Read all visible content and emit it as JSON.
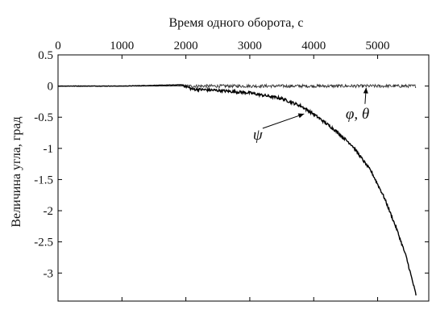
{
  "chart_data": {
    "type": "line",
    "xlabel": "Время одного оборота, с",
    "ylabel": "Величина угла, град",
    "x_axis_position": "top",
    "xlim": [
      0,
      5800
    ],
    "ylim": [
      -3.45,
      0.5
    ],
    "grid": false,
    "x_ticks": [
      0,
      1000,
      2000,
      3000,
      4000,
      5000
    ],
    "x_tick_labels": [
      "0",
      "1000",
      "2000",
      "3000",
      "4000",
      "5000"
    ],
    "y_ticks": [
      0.5,
      0,
      -0.5,
      -1,
      -1.5,
      -2,
      -2.5,
      -3
    ],
    "y_tick_labels": [
      "0.5",
      "0",
      "-0.5",
      "-1",
      "-1.5",
      "-2",
      "-2.5",
      "-3"
    ],
    "series": [
      {
        "name": "φ, θ",
        "x": [
          0,
          500,
          1000,
          1500,
          2000,
          2500,
          3000,
          3500,
          4000,
          4500,
          5000,
          5600
        ],
        "y": [
          0,
          0,
          0,
          0,
          0,
          0,
          0,
          0,
          0,
          0,
          0,
          0
        ]
      },
      {
        "name": "ψ",
        "x": [
          0,
          500,
          1000,
          1500,
          1950,
          2100,
          2500,
          3000,
          3500,
          3800,
          4000,
          4300,
          4600,
          4900,
          5100,
          5300,
          5450,
          5600
        ],
        "y": [
          0,
          0,
          0,
          0.01,
          0.02,
          -0.05,
          -0.07,
          -0.11,
          -0.2,
          -0.32,
          -0.45,
          -0.68,
          -0.95,
          -1.37,
          -1.78,
          -2.3,
          -2.75,
          -3.35
        ]
      }
    ],
    "annotations": [
      {
        "text": "φ, θ",
        "x": 4500,
        "y": -0.52
      },
      {
        "text": "ψ",
        "x": 3050,
        "y": -0.86
      }
    ]
  }
}
